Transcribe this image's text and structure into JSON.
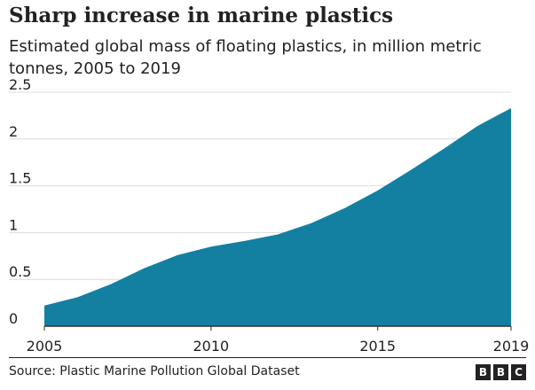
{
  "title": "Sharp increase in marine plastics",
  "subtitle": "Estimated global mass of floating plastics, in million metric tonnes, 2005 to 2019",
  "source": "Source: Plastic Marine Pollution Global Dataset",
  "brand": {
    "letters": [
      "B",
      "B",
      "C"
    ]
  },
  "colors": {
    "area": "#1380a1",
    "grid": "#dcdcdc",
    "axis": "#333333",
    "text": "#222222"
  },
  "chart_data": {
    "type": "area",
    "title": "Sharp increase in marine plastics",
    "subtitle": "Estimated global mass of floating plastics, in million metric tonnes, 2005 to 2019",
    "xlabel": "",
    "ylabel": "",
    "x": [
      2005,
      2006,
      2007,
      2008,
      2009,
      2010,
      2011,
      2012,
      2013,
      2014,
      2015,
      2016,
      2017,
      2018,
      2019
    ],
    "series": [
      {
        "values": [
          0.22,
          0.31,
          0.45,
          0.62,
          0.76,
          0.85,
          0.91,
          0.98,
          1.1,
          1.26,
          1.45,
          1.67,
          1.9,
          2.14,
          2.33
        ]
      }
    ],
    "xlim": [
      2005,
      2019
    ],
    "ylim": [
      0,
      2.5
    ],
    "x_ticks": [
      2005,
      2010,
      2015,
      2019
    ],
    "x_tick_labels": [
      "2005",
      "2010",
      "2015",
      "2019"
    ],
    "y_ticks": [
      0,
      0.5,
      1,
      1.5,
      2,
      2.5
    ],
    "y_tick_labels": [
      "0",
      "0.5",
      "1",
      "1.5",
      "2",
      "2.5"
    ],
    "grid": true,
    "legend": "none"
  }
}
